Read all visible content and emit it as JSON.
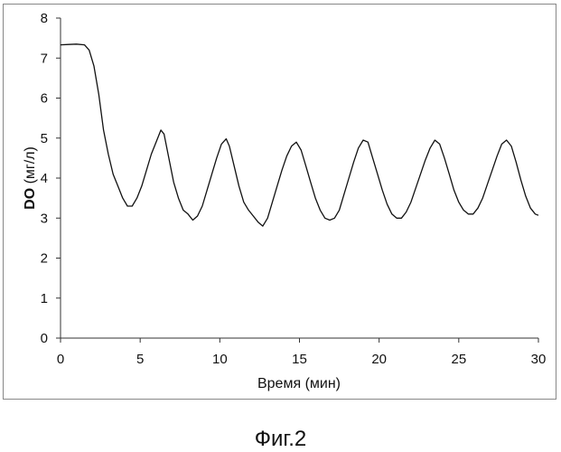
{
  "caption": "Фиг.2",
  "chart_data": {
    "type": "line",
    "title": "",
    "xlabel": "Время (мин)",
    "ylabel_bold": "DO",
    "ylabel_rest": " (мг/л)",
    "xlim": [
      0,
      30
    ],
    "ylim": [
      0,
      8
    ],
    "xticks": [
      0,
      5,
      10,
      15,
      20,
      25,
      30
    ],
    "yticks": [
      0,
      1,
      2,
      3,
      4,
      5,
      6,
      7,
      8
    ],
    "grid": false,
    "legend": "none",
    "line_color": "#111111",
    "series": [
      {
        "x": [
          0,
          0.5,
          1,
          1.5,
          1.8,
          2.1,
          2.4,
          2.7,
          3.0,
          3.3,
          3.6,
          3.9,
          4.2,
          4.5,
          4.8,
          5.1,
          5.4,
          5.7,
          6.0,
          6.3,
          6.5,
          6.8,
          7.1,
          7.4,
          7.7,
          8.0,
          8.3,
          8.6,
          8.9,
          9.2,
          9.5,
          9.8,
          10.1,
          10.4,
          10.6,
          10.9,
          11.2,
          11.5,
          11.8,
          12.1,
          12.4,
          12.7,
          13.0,
          13.3,
          13.6,
          13.9,
          14.2,
          14.5,
          14.8,
          15.1,
          15.4,
          15.7,
          16.0,
          16.3,
          16.6,
          16.9,
          17.2,
          17.5,
          17.8,
          18.1,
          18.4,
          18.7,
          19.0,
          19.3,
          19.6,
          19.9,
          20.2,
          20.5,
          20.8,
          21.1,
          21.4,
          21.7,
          22.0,
          22.3,
          22.6,
          22.9,
          23.2,
          23.5,
          23.8,
          24.1,
          24.4,
          24.7,
          25.0,
          25.3,
          25.6,
          25.9,
          26.2,
          26.5,
          26.8,
          27.1,
          27.4,
          27.7,
          28.0,
          28.3,
          28.6,
          28.9,
          29.2,
          29.5,
          29.8,
          30.0
        ],
        "y": [
          7.33,
          7.34,
          7.35,
          7.33,
          7.2,
          6.8,
          6.1,
          5.2,
          4.6,
          4.1,
          3.8,
          3.5,
          3.3,
          3.3,
          3.5,
          3.8,
          4.2,
          4.6,
          4.9,
          5.2,
          5.1,
          4.5,
          3.9,
          3.5,
          3.2,
          3.1,
          2.95,
          3.05,
          3.3,
          3.7,
          4.1,
          4.5,
          4.85,
          4.98,
          4.8,
          4.3,
          3.8,
          3.4,
          3.2,
          3.05,
          2.9,
          2.8,
          3.0,
          3.4,
          3.8,
          4.2,
          4.55,
          4.8,
          4.9,
          4.7,
          4.3,
          3.9,
          3.5,
          3.2,
          3.0,
          2.95,
          3.0,
          3.2,
          3.6,
          4.0,
          4.4,
          4.75,
          4.95,
          4.9,
          4.5,
          4.1,
          3.7,
          3.35,
          3.1,
          3.0,
          3.0,
          3.15,
          3.4,
          3.75,
          4.1,
          4.45,
          4.75,
          4.95,
          4.85,
          4.5,
          4.1,
          3.7,
          3.4,
          3.2,
          3.1,
          3.1,
          3.25,
          3.5,
          3.85,
          4.2,
          4.55,
          4.85,
          4.95,
          4.8,
          4.4,
          3.95,
          3.55,
          3.25,
          3.1,
          3.07
        ]
      }
    ]
  }
}
